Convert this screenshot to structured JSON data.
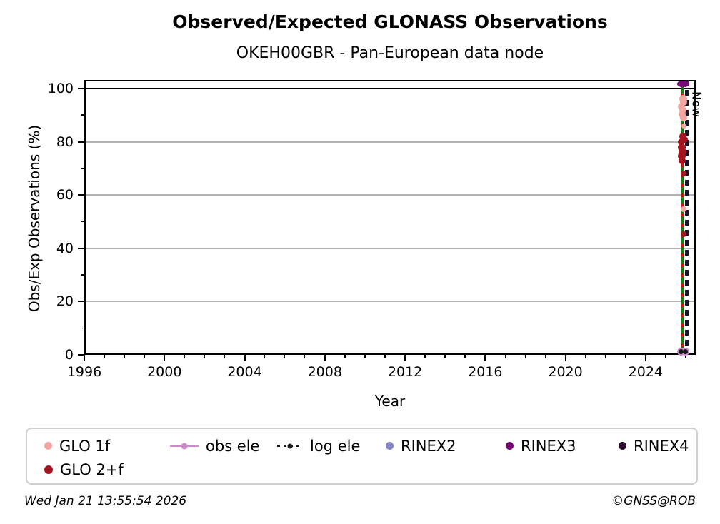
{
  "header": {
    "title": "Observed/Expected GLONASS Observations",
    "subtitle": "OKEH00GBR - Pan-European data node"
  },
  "footer": {
    "timestamp": "Wed Jan 21 13:55:54 2026",
    "copyright": "©GNSS@ROB"
  },
  "chart_data": {
    "type": "scatter",
    "title": "Observed/Expected GLONASS Observations",
    "subtitle": "OKEH00GBR - Pan-European data node",
    "xlabel": "Year",
    "ylabel": "Obs/Exp Observations (%)",
    "xlim": [
      1996,
      2026.5
    ],
    "ylim": [
      0,
      103.2
    ],
    "x_major_ticks": [
      1996,
      2000,
      2004,
      2008,
      2012,
      2016,
      2020,
      2024
    ],
    "x_minor_step": 1,
    "y_major_ticks": [
      0,
      20,
      40,
      60,
      80,
      100
    ],
    "y_minor_step": 10,
    "grid": "horizontal-major-gray",
    "reference_hline": 100,
    "annotations": [
      {
        "text": "Now",
        "x": 2026.05,
        "y": 99.0,
        "rotation": 90
      }
    ],
    "vlines": [
      {
        "name": "event-line-green",
        "x": 2025.82,
        "color": "#117a11",
        "style": "solid",
        "width": 4,
        "dash": [
          5,
          9
        ],
        "y0": 0,
        "y1": 101.8
      },
      {
        "name": "event-line-red",
        "x": 2025.82,
        "color": "#d31010",
        "style": "dashed",
        "width": 4,
        "dash": [
          5,
          9
        ],
        "y0": 0,
        "y1": 101.8
      },
      {
        "name": "now-line",
        "x": 2026.05,
        "color": "#15152f",
        "style": "dashed",
        "width": 5,
        "dash": [
          8,
          6
        ],
        "y0": 0,
        "y1": 103.2
      }
    ],
    "series": [
      {
        "name": "GLO 1f",
        "color": "#f3a5a0",
        "size": 10,
        "points": [
          [
            2025.86,
            96.2,
            11
          ],
          [
            2025.9,
            94.8,
            10
          ],
          [
            2025.8,
            93.3,
            10
          ],
          [
            2025.87,
            92.0,
            10
          ],
          [
            2025.83,
            90.3,
            10
          ],
          [
            2025.88,
            88.9,
            10
          ],
          [
            2025.9,
            85.8,
            7
          ],
          [
            2025.9,
            54.6,
            8
          ]
        ]
      },
      {
        "name": "GLO 2+f",
        "color": "#a4161f",
        "size": 10,
        "points": [
          [
            2025.86,
            82.1,
            10
          ],
          [
            2025.95,
            80.9,
            9
          ],
          [
            2025.78,
            80.0,
            10
          ],
          [
            2025.81,
            77.9,
            11
          ],
          [
            2025.85,
            76.3,
            11
          ],
          [
            2025.81,
            74.6,
            11
          ],
          [
            2025.84,
            72.9,
            10
          ],
          [
            2025.89,
            68.0,
            8
          ],
          [
            2025.89,
            45.2,
            8
          ]
        ]
      },
      {
        "name": "obs ele",
        "color": "#c98bc9",
        "size": 11,
        "open": true,
        "points": [
          [
            2025.78,
            1.3
          ],
          [
            2026.0,
            1.3
          ]
        ]
      },
      {
        "name": "log ele",
        "color": "#1a1a1a",
        "size": 7,
        "points": [
          [
            2025.78,
            1.3
          ],
          [
            2026.0,
            1.3
          ]
        ]
      },
      {
        "name": "RINEX2",
        "color": "#8384c4",
        "size": 9,
        "points": []
      },
      {
        "name": "RINEX3",
        "color": "#730874",
        "size": 12,
        "ellipse": {
          "w": 13,
          "h": 9
        },
        "points": [
          [
            2025.8,
            101.6
          ],
          [
            2025.94,
            101.6
          ]
        ]
      },
      {
        "name": "RINEX4",
        "color": "#2a0b2e",
        "size": 7,
        "points": []
      }
    ],
    "legend": {
      "entries": [
        {
          "label": "GLO 1f",
          "marker": "dot",
          "color": "#f3a5a0",
          "size": 11
        },
        {
          "label": "obs ele",
          "marker": "line-dot",
          "color": "#c98bc9"
        },
        {
          "label": "log ele",
          "marker": "dash-dot",
          "color": "#1a1a1a"
        },
        {
          "label": "RINEX2",
          "marker": "dot",
          "color": "#8384c4",
          "size": 11
        },
        {
          "label": "RINEX3",
          "marker": "dot",
          "color": "#730874",
          "size": 11
        },
        {
          "label": "RINEX4",
          "marker": "dot",
          "color": "#2a0b2e",
          "size": 11
        },
        {
          "label": "GLO 2+f",
          "marker": "dot",
          "color": "#a4161f",
          "size": 12
        }
      ]
    }
  }
}
